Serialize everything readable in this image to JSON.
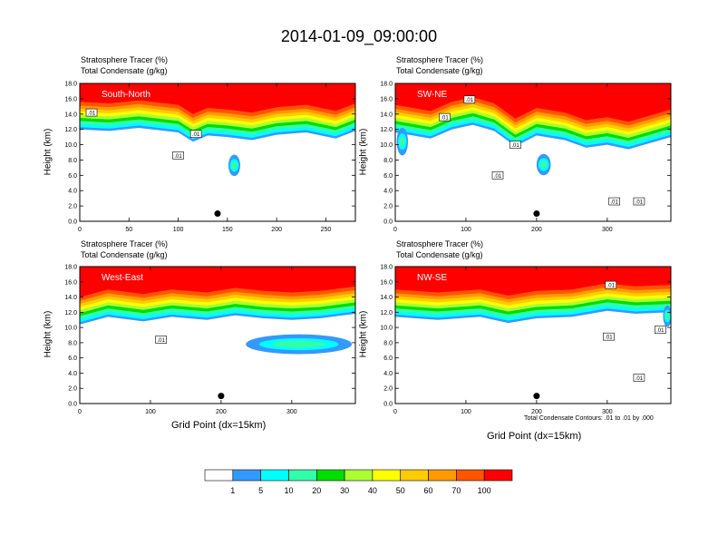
{
  "title": "2014-01-09_09:00:00",
  "chart_data": [
    {
      "type": "heatmap",
      "panel_label": "South-North",
      "subtitle_line1": "Stratosphere Tracer   (%)",
      "subtitle_line2": "Total Condensate   (g/kg)",
      "ylabel": "Height (km)",
      "xlabel": "",
      "xlim": [
        0,
        280
      ],
      "ylim": [
        0,
        18
      ],
      "xticks": [
        "0",
        "50",
        "100",
        "150",
        "200",
        "250"
      ],
      "yticks": [
        "0.0",
        "2.0",
        "4.0",
        "6.0",
        "8.0",
        "10.0",
        "12.0",
        "14.0",
        "16.0",
        "18.0"
      ],
      "tropopause_km": [
        [
          0,
          15.6
        ],
        [
          30,
          15.4
        ],
        [
          60,
          15.8
        ],
        [
          100,
          15.2
        ],
        [
          115,
          14.0
        ],
        [
          130,
          14.8
        ],
        [
          150,
          14.6
        ],
        [
          175,
          14.2
        ],
        [
          200,
          14.9
        ],
        [
          230,
          15.2
        ],
        [
          260,
          14.4
        ],
        [
          280,
          15.4
        ]
      ],
      "marker": {
        "x": 140,
        "y": 1.0
      },
      "blobs": [
        {
          "x": 157,
          "y": 7.3,
          "rx": 6,
          "ry": 1.4
        }
      ],
      "contour_labels": [
        {
          "x": 12,
          "y": 14.2,
          "text": ".01"
        },
        {
          "x": 118,
          "y": 11.4,
          "text": ".01"
        },
        {
          "x": 100,
          "y": 8.6,
          "text": ".01"
        }
      ]
    },
    {
      "type": "heatmap",
      "panel_label": "SW-NE",
      "subtitle_line1": "Stratosphere Tracer   (%)",
      "subtitle_line2": "Total Condensate   (g/kg)",
      "ylabel": "Height (km)",
      "xlabel": "",
      "xlim": [
        0,
        390
      ],
      "ylim": [
        0,
        18
      ],
      "xticks": [
        "0",
        "100",
        "200",
        "300"
      ],
      "yticks": [
        "0.0",
        "2.0",
        "4.0",
        "6.0",
        "8.0",
        "10.0",
        "12.0",
        "14.0",
        "16.0",
        "18.0"
      ],
      "tropopause_km": [
        [
          0,
          15.2
        ],
        [
          50,
          14.4
        ],
        [
          80,
          15.6
        ],
        [
          110,
          16.2
        ],
        [
          140,
          15.4
        ],
        [
          170,
          13.4
        ],
        [
          200,
          14.8
        ],
        [
          240,
          14.2
        ],
        [
          270,
          13.2
        ],
        [
          300,
          13.6
        ],
        [
          330,
          13.0
        ],
        [
          360,
          13.8
        ],
        [
          390,
          14.6
        ]
      ],
      "marker": {
        "x": 200,
        "y": 1.0
      },
      "blobs": [
        {
          "x": 210,
          "y": 7.4,
          "rx": 10,
          "ry": 1.4
        },
        {
          "x": 10,
          "y": 10.4,
          "rx": 8,
          "ry": 1.8
        }
      ],
      "contour_labels": [
        {
          "x": 70,
          "y": 13.6,
          "text": ".01"
        },
        {
          "x": 105,
          "y": 15.9,
          "text": ".01"
        },
        {
          "x": 170,
          "y": 10.0,
          "text": ".01"
        },
        {
          "x": 145,
          "y": 6.0,
          "text": ".01"
        },
        {
          "x": 310,
          "y": 2.6,
          "text": ".01"
        },
        {
          "x": 345,
          "y": 2.6,
          "text": ".01"
        }
      ]
    },
    {
      "type": "heatmap",
      "panel_label": "West-East",
      "subtitle_line1": "Stratosphere Tracer   (%)",
      "subtitle_line2": "Total Condensate   (g/kg)",
      "ylabel": "Height (km)",
      "xlabel": "Grid Point (dx=15km)",
      "xlim": [
        0,
        390
      ],
      "ylim": [
        0,
        18
      ],
      "xticks": [
        "0",
        "100",
        "200",
        "300"
      ],
      "yticks": [
        "0.0",
        "2.0",
        "4.0",
        "6.0",
        "8.0",
        "10.0",
        "12.0",
        "14.0",
        "16.0",
        "18.0"
      ],
      "tropopause_km": [
        [
          0,
          14.0
        ],
        [
          40,
          15.0
        ],
        [
          90,
          14.4
        ],
        [
          130,
          15.0
        ],
        [
          180,
          14.6
        ],
        [
          220,
          15.2
        ],
        [
          260,
          14.8
        ],
        [
          300,
          14.6
        ],
        [
          340,
          14.8
        ],
        [
          390,
          15.4
        ]
      ],
      "marker": {
        "x": 200,
        "y": 1.0
      },
      "blobs": [
        {
          "x": 310,
          "y": 7.8,
          "rx": 75,
          "ry": 1.3
        }
      ],
      "contour_labels": [
        {
          "x": 115,
          "y": 8.4,
          "text": ".01"
        }
      ]
    },
    {
      "type": "heatmap",
      "panel_label": "NW-SE",
      "subtitle_line1": "Stratosphere Tracer   (%)",
      "subtitle_line2": "Total Condensate   (g/kg)",
      "ylabel": "Height (km)",
      "xlabel": "Grid Point (dx=15km)",
      "xlim": [
        0,
        390
      ],
      "ylim": [
        0,
        18
      ],
      "xticks": [
        "0",
        "100",
        "200",
        "300"
      ],
      "yticks": [
        "0.0",
        "2.0",
        "4.0",
        "6.0",
        "8.0",
        "10.0",
        "12.0",
        "14.0",
        "16.0",
        "18.0"
      ],
      "tropopause_km": [
        [
          0,
          15.0
        ],
        [
          60,
          14.6
        ],
        [
          120,
          15.0
        ],
        [
          160,
          14.2
        ],
        [
          200,
          14.8
        ],
        [
          250,
          15.0
        ],
        [
          300,
          15.8
        ],
        [
          340,
          15.4
        ],
        [
          390,
          15.6
        ]
      ],
      "marker": {
        "x": 200,
        "y": 1.0
      },
      "blobs": [
        {
          "x": 385,
          "y": 11.5,
          "rx": 6,
          "ry": 1.4
        }
      ],
      "contour_labels": [
        {
          "x": 305,
          "y": 15.6,
          "text": ".01"
        },
        {
          "x": 302,
          "y": 8.8,
          "text": ".01"
        },
        {
          "x": 375,
          "y": 9.7,
          "text": ".01"
        },
        {
          "x": 345,
          "y": 3.4,
          "text": ".01"
        }
      ],
      "contour_note": "Total Condensate Contours: .01 to .01 by .000"
    }
  ],
  "colorbar": {
    "levels": [
      "1",
      "5",
      "10",
      "20",
      "30",
      "40",
      "50",
      "60",
      "70",
      "100"
    ],
    "colors": [
      "#ffffff",
      "#3399ff",
      "#00ffff",
      "#33ffaa",
      "#00dd00",
      "#aaff33",
      "#ffff00",
      "#ffcc00",
      "#ff9900",
      "#ff5500",
      "#ff0000"
    ]
  }
}
